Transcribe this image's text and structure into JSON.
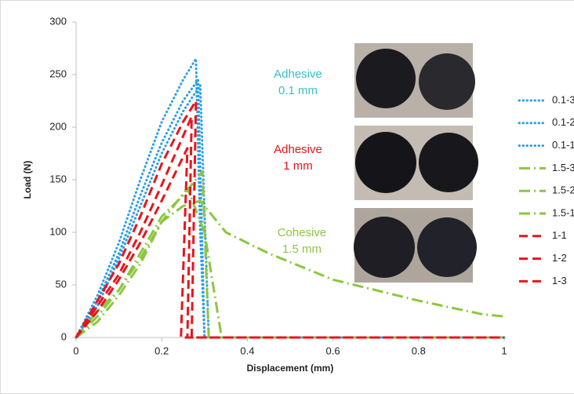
{
  "chart_data": {
    "type": "line",
    "x_label": "Displacement (mm)",
    "y_label": "Load (N)",
    "xlim": [
      0,
      1
    ],
    "xticks": [
      0,
      0.2,
      0.4,
      0.6,
      0.8,
      1
    ],
    "ylim": [
      0,
      300
    ],
    "yticks": [
      0,
      50,
      100,
      150,
      200,
      250,
      300
    ],
    "grid": false,
    "legend": "right",
    "annotations": [
      {
        "lines": [
          "Adhesive",
          "0.1 mm"
        ],
        "color": "#3bbfc4"
      },
      {
        "lines": [
          "Adhesive",
          "1 mm"
        ],
        "color": "#e8141b"
      },
      {
        "lines": [
          "Cohesive",
          "1.5 mm"
        ],
        "color": "#8cc63f"
      }
    ],
    "series": [
      {
        "name": "0.1-3",
        "color": "#2e9fe6",
        "dash": "dotted",
        "x": [
          0,
          0.05,
          0.1,
          0.15,
          0.2,
          0.25,
          0.28,
          0.29,
          0.3,
          1
        ],
        "values": [
          0,
          40,
          90,
          150,
          205,
          245,
          265,
          100,
          0,
          0
        ]
      },
      {
        "name": "0.1-2",
        "color": "#2e9fe6",
        "dash": "dotted",
        "x": [
          0,
          0.05,
          0.1,
          0.15,
          0.2,
          0.25,
          0.285,
          0.3,
          1
        ],
        "values": [
          0,
          35,
          80,
          135,
          185,
          225,
          245,
          0,
          0
        ]
      },
      {
        "name": "0.1-1",
        "color": "#2e9fe6",
        "dash": "dotted",
        "x": [
          0,
          0.05,
          0.1,
          0.15,
          0.2,
          0.25,
          0.29,
          0.31,
          1
        ],
        "values": [
          0,
          30,
          75,
          125,
          175,
          215,
          240,
          0,
          0
        ]
      },
      {
        "name": "1.5-3",
        "color": "#8cc63f",
        "dash": "dash-dot",
        "x": [
          0,
          0.05,
          0.1,
          0.15,
          0.2,
          0.25,
          0.295,
          0.31,
          1
        ],
        "values": [
          0,
          20,
          45,
          80,
          115,
          135,
          158,
          0,
          0
        ]
      },
      {
        "name": "1.5-2",
        "color": "#8cc63f",
        "dash": "dash-dot",
        "x": [
          0,
          0.05,
          0.1,
          0.15,
          0.2,
          0.26,
          0.3,
          0.34,
          1
        ],
        "values": [
          0,
          15,
          40,
          70,
          110,
          142,
          100,
          0,
          0
        ]
      },
      {
        "name": "1.5-1",
        "color": "#8cc63f",
        "dash": "dash-dot",
        "x": [
          0,
          0.05,
          0.1,
          0.15,
          0.2,
          0.25,
          0.29,
          0.35,
          0.45,
          0.6,
          0.8,
          0.95,
          1
        ],
        "values": [
          0,
          25,
          45,
          75,
          110,
          125,
          130,
          100,
          80,
          55,
          35,
          22,
          20
        ]
      },
      {
        "name": "1-1",
        "color": "#e8141b",
        "dash": "dashed",
        "x": [
          0,
          0.05,
          0.1,
          0.15,
          0.2,
          0.25,
          0.28,
          0.27,
          1
        ],
        "values": [
          0,
          35,
          70,
          115,
          165,
          205,
          225,
          0,
          0
        ]
      },
      {
        "name": "1-2",
        "color": "#e8141b",
        "dash": "dashed",
        "x": [
          0,
          0.05,
          0.1,
          0.15,
          0.2,
          0.27,
          0.26,
          1
        ],
        "values": [
          0,
          30,
          60,
          100,
          145,
          210,
          0,
          0
        ]
      },
      {
        "name": "1-3",
        "color": "#e8141b",
        "dash": "dashed",
        "x": [
          0,
          0.05,
          0.1,
          0.15,
          0.2,
          0.26,
          0.245,
          1
        ],
        "values": [
          0,
          25,
          55,
          90,
          130,
          180,
          0,
          0
        ]
      }
    ]
  }
}
